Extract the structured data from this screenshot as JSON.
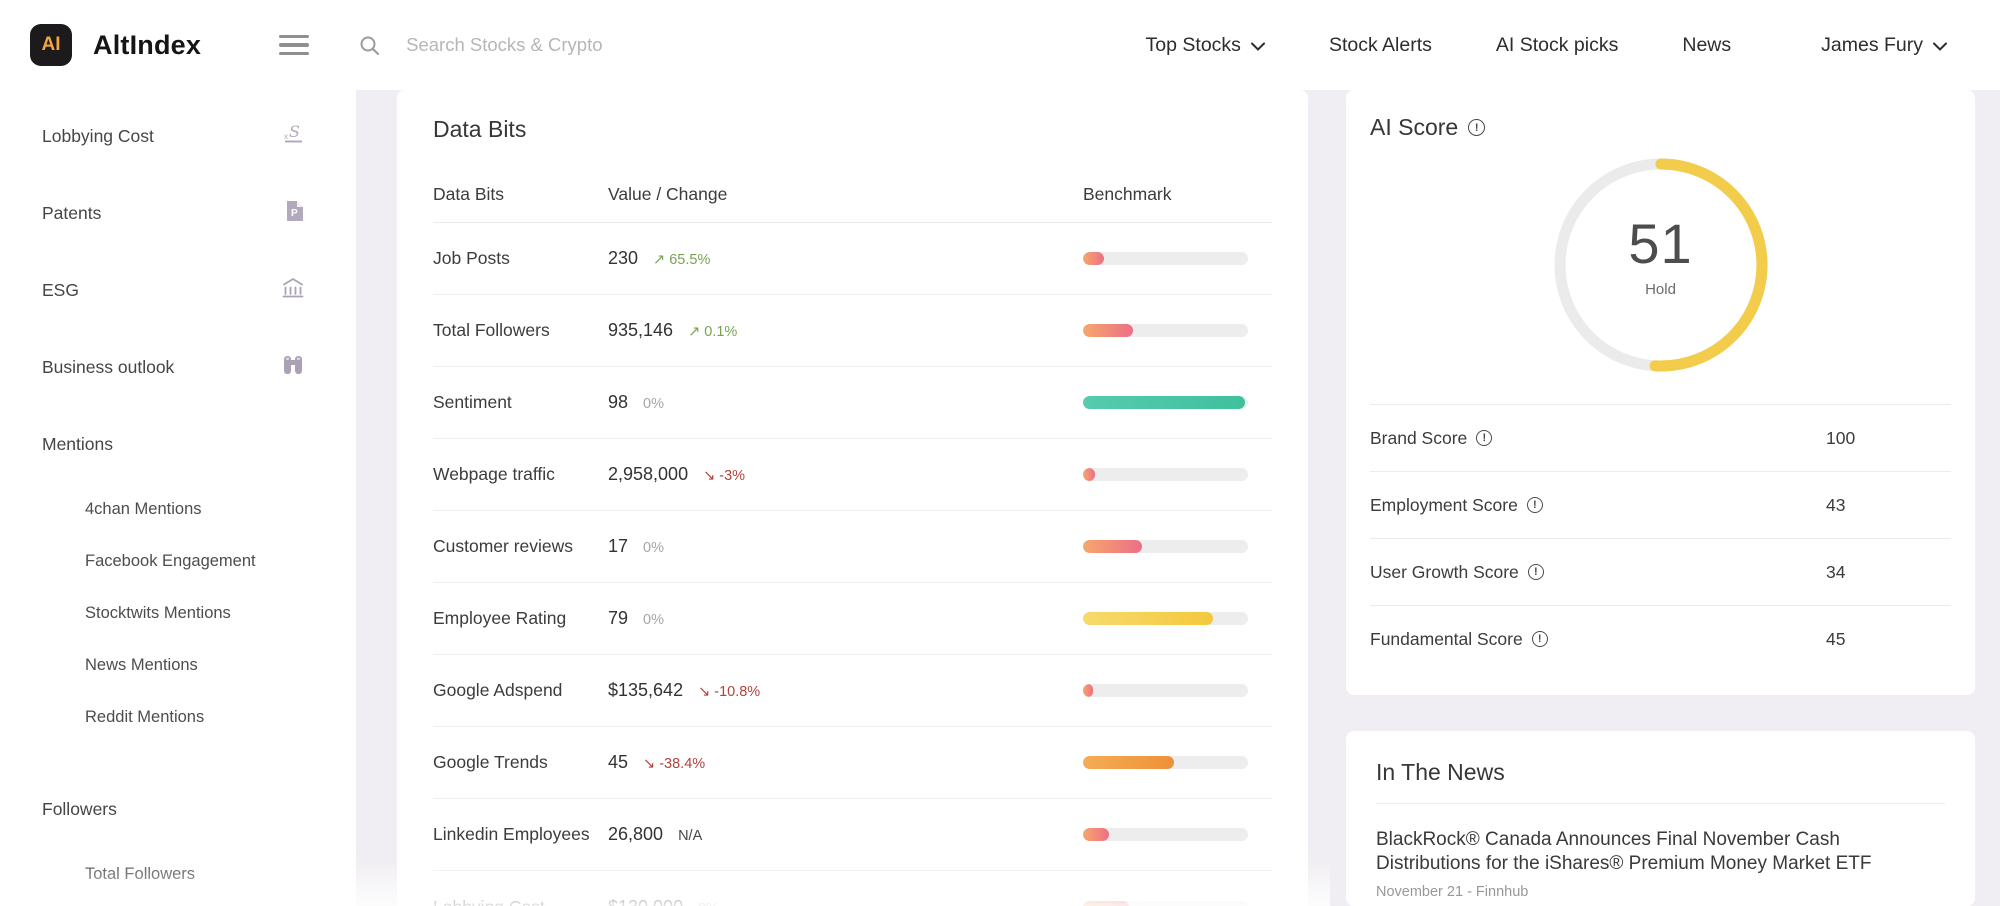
{
  "header": {
    "logo_badge": "AI",
    "brand": "AltIndex",
    "search": {
      "placeholder": "Search Stocks & Crypto"
    },
    "nav": [
      {
        "label": "Top Stocks",
        "has_dropdown": true
      },
      {
        "label": "Stock Alerts",
        "has_dropdown": false
      },
      {
        "label": "AI Stock picks",
        "has_dropdown": false
      },
      {
        "label": "News",
        "has_dropdown": false
      }
    ],
    "user": {
      "name": "James Fury"
    }
  },
  "sidebar": {
    "items": [
      {
        "label": "Lobbying Cost",
        "type": "top",
        "icon": "signature-icon"
      },
      {
        "label": "Patents",
        "type": "top",
        "icon": "patent-document-icon"
      },
      {
        "label": "ESG",
        "type": "top",
        "icon": "landmark-icon"
      },
      {
        "label": "Business outlook",
        "type": "top",
        "icon": "binoculars-icon"
      },
      {
        "label": "Mentions",
        "type": "group",
        "icon": null
      },
      {
        "label": "4chan Mentions",
        "type": "sub",
        "icon": null
      },
      {
        "label": "Facebook Engagement",
        "type": "sub",
        "icon": null
      },
      {
        "label": "Stocktwits Mentions",
        "type": "sub",
        "icon": null
      },
      {
        "label": "News Mentions",
        "type": "sub",
        "icon": null
      },
      {
        "label": "Reddit Mentions",
        "type": "sub",
        "icon": null
      },
      {
        "label": "Followers",
        "type": "group",
        "icon": null,
        "gap_before": true
      },
      {
        "label": "Total Followers",
        "type": "sub",
        "icon": null
      }
    ]
  },
  "data_bits": {
    "title": "Data Bits",
    "columns": [
      "Data Bits",
      "Value / Change",
      "Benchmark"
    ],
    "rows": [
      {
        "label": "Job Posts",
        "value": "230",
        "direction": "up",
        "change": "65.5%",
        "benchmark_pct": 13,
        "bar_style": "warm"
      },
      {
        "label": "Total Followers",
        "value": "935,146",
        "direction": "up",
        "change": "0.1%",
        "benchmark_pct": 30,
        "bar_style": "warm"
      },
      {
        "label": "Sentiment",
        "value": "98",
        "direction": "flat",
        "change": "0%",
        "benchmark_pct": 98,
        "bar_style": "teal"
      },
      {
        "label": "Webpage traffic",
        "value": "2,958,000",
        "direction": "down",
        "change": "-3%",
        "benchmark_pct": 7,
        "bar_style": "warm"
      },
      {
        "label": "Customer reviews",
        "value": "17",
        "direction": "flat",
        "change": "0%",
        "benchmark_pct": 36,
        "bar_style": "warm"
      },
      {
        "label": "Employee Rating",
        "value": "79",
        "direction": "flat",
        "change": "0%",
        "benchmark_pct": 79,
        "bar_style": "yellow"
      },
      {
        "label": "Google Adspend",
        "value": "$135,642",
        "direction": "down",
        "change": "-10.8%",
        "benchmark_pct": 6,
        "bar_style": "warm"
      },
      {
        "label": "Google Trends",
        "value": "45",
        "direction": "down",
        "change": "-38.4%",
        "benchmark_pct": 55,
        "bar_style": "orange"
      },
      {
        "label": "Linkedin Employees",
        "value": "26,800",
        "direction": "na",
        "change": "N/A",
        "benchmark_pct": 16,
        "bar_style": "warm"
      },
      {
        "label": "Lobbying Cost",
        "value": "$130,000",
        "direction": "flat",
        "change": "0%",
        "benchmark_pct": 28,
        "bar_style": "warm"
      }
    ]
  },
  "ai_score": {
    "title": "AI Score",
    "value": 51,
    "max": 100,
    "rating_label": "Hold",
    "scores": [
      {
        "label": "Brand Score",
        "value": "100"
      },
      {
        "label": "Employment Score",
        "value": "43"
      },
      {
        "label": "User Growth Score",
        "value": "34"
      },
      {
        "label": "Fundamental Score",
        "value": "45"
      }
    ]
  },
  "news": {
    "title": "In The News",
    "articles": [
      {
        "headline": "BlackRock® Canada Announces Final November Cash Distributions for the iShares® Premium Money Market ETF",
        "meta": "November 21 - Finnhub"
      }
    ]
  },
  "colors": {
    "page_background": "#f1eef3",
    "logo_background": "#1d1a1d",
    "logo_text": "#f0a63c",
    "positive": "#7aa24f",
    "negative": "#b2423c",
    "neutral": "#a6a6a6",
    "gauge_fill": "#f2cc4a",
    "gauge_track": "#ebebeb",
    "bar_warm": [
      "#f7a76c",
      "#ec6f87"
    ],
    "bar_teal": "#4cc4a4",
    "bar_yellow": "#f4c83c",
    "bar_orange": "#ee9138"
  }
}
